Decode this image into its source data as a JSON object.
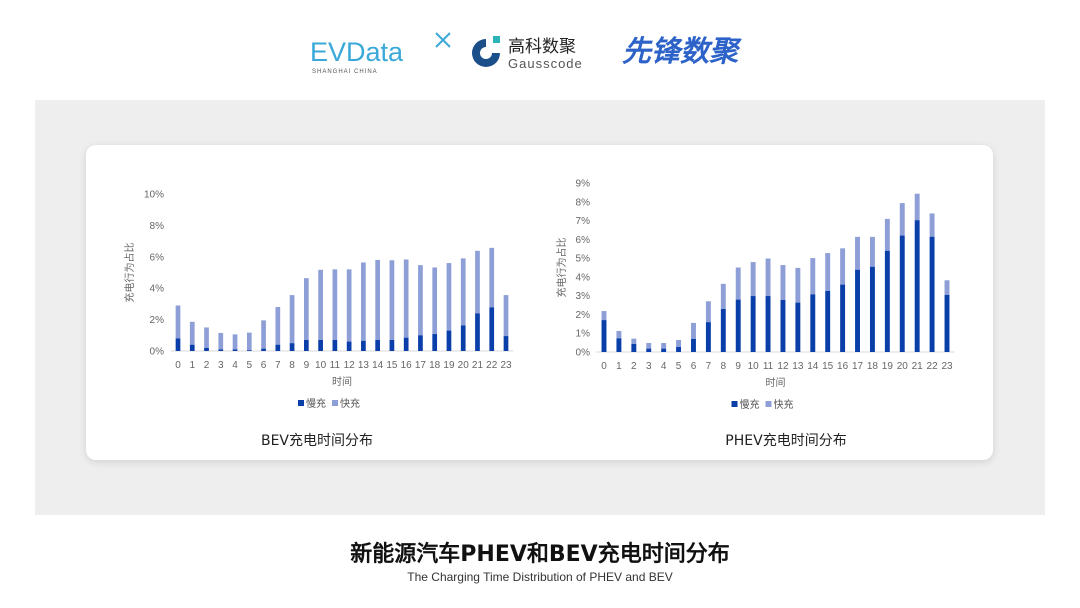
{
  "logos": {
    "evdata": {
      "text": "EVData",
      "sub": "SHANGHAI CHINA"
    },
    "gausscode": {
      "cn": "高科数聚",
      "en": "Gausscode"
    },
    "xianfeng": {
      "text": "先锋数聚"
    }
  },
  "title": "新能源汽车PHEV和BEV充电时间分布",
  "subtitle": "The Charging Time Distribution of PHEV and BEV",
  "colors": {
    "slow": "#0a3ea8",
    "fast": "#8e9fd8",
    "panel": "#eeeeee"
  },
  "chart_data": [
    {
      "type": "bar",
      "stacked": true,
      "title": "BEV充电时间分布",
      "xlabel": "时间",
      "ylabel": "充电行为占比",
      "ylim": [
        0,
        10
      ],
      "yticks": [
        "0%",
        "2%",
        "4%",
        "6%",
        "8%",
        "10%"
      ],
      "grid": false,
      "legend": "bottom",
      "categories": [
        "0",
        "1",
        "2",
        "3",
        "4",
        "5",
        "6",
        "7",
        "8",
        "9",
        "10",
        "11",
        "12",
        "13",
        "14",
        "15",
        "16",
        "17",
        "18",
        "19",
        "20",
        "21",
        "22",
        "23"
      ],
      "series": [
        {
          "name": "慢充",
          "values": [
            0.8,
            0.4,
            0.2,
            0.1,
            0.1,
            0.05,
            0.15,
            0.4,
            0.5,
            0.7,
            0.7,
            0.7,
            0.6,
            0.65,
            0.7,
            0.7,
            0.85,
            1.0,
            1.08,
            1.3,
            1.63,
            2.4,
            2.78,
            0.95
          ]
        },
        {
          "name": "快充",
          "values": [
            2.1,
            1.46,
            1.3,
            1.05,
            0.96,
            1.12,
            1.8,
            2.4,
            3.06,
            3.94,
            4.47,
            4.5,
            4.6,
            4.99,
            5.1,
            5.08,
            4.98,
            4.47,
            4.24,
            4.3,
            4.27,
            3.98,
            3.79,
            2.61
          ]
        }
      ]
    },
    {
      "type": "bar",
      "stacked": true,
      "title": "PHEV充电时间分布",
      "xlabel": "时间",
      "ylabel": "充电行为占比",
      "ylim": [
        0,
        9
      ],
      "yticks": [
        "0%",
        "1%",
        "2%",
        "3%",
        "4%",
        "5%",
        "6%",
        "7%",
        "8%",
        "9%"
      ],
      "grid": false,
      "legend": "bottom",
      "categories": [
        "0",
        "1",
        "2",
        "3",
        "4",
        "5",
        "6",
        "7",
        "8",
        "9",
        "10",
        "11",
        "12",
        "13",
        "14",
        "15",
        "16",
        "17",
        "18",
        "19",
        "20",
        "21",
        "22",
        "23"
      ],
      "series": [
        {
          "name": "慢充",
          "values": [
            1.7,
            0.73,
            0.43,
            0.18,
            0.18,
            0.27,
            0.7,
            1.59,
            2.29,
            2.79,
            2.98,
            2.98,
            2.77,
            2.63,
            3.07,
            3.25,
            3.59,
            4.38,
            4.54,
            5.39,
            6.2,
            7.02,
            6.14,
            3.04
          ]
        },
        {
          "name": "快充",
          "values": [
            0.48,
            0.39,
            0.28,
            0.3,
            0.3,
            0.37,
            0.85,
            1.11,
            1.34,
            1.71,
            1.81,
            2.0,
            1.86,
            1.85,
            1.93,
            2.02,
            1.93,
            1.75,
            1.59,
            1.7,
            1.73,
            1.41,
            1.24,
            0.78
          ]
        }
      ]
    }
  ]
}
